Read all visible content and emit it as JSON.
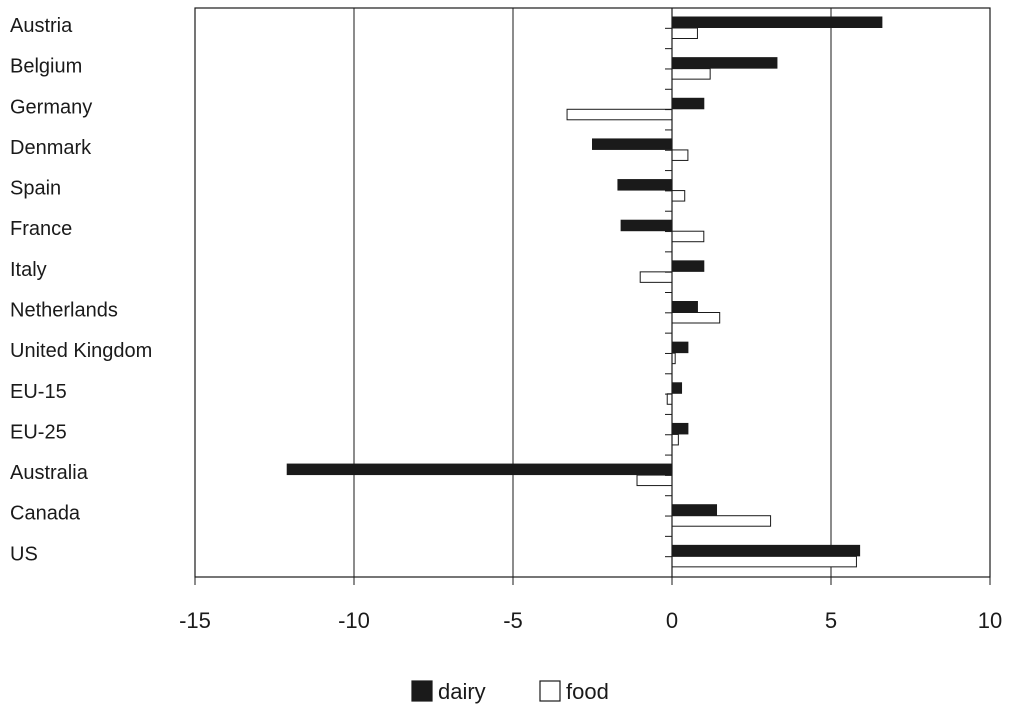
{
  "chart_data": {
    "type": "bar",
    "orientation": "horizontal",
    "categories": [
      "Austria",
      "Belgium",
      "Germany",
      "Denmark",
      "Spain",
      "France",
      "Italy",
      "Netherlands",
      "United Kingdom",
      "EU-15",
      "EU-25",
      "Australia",
      "Canada",
      "US"
    ],
    "series": [
      {
        "name": "dairy",
        "color": "#1a1a1a",
        "values": [
          6.6,
          3.3,
          1.0,
          -2.5,
          -1.7,
          -1.6,
          1.0,
          0.8,
          0.5,
          0.3,
          0.5,
          -12.1,
          1.4,
          5.9
        ]
      },
      {
        "name": "food",
        "color": "#ffffff",
        "values": [
          0.8,
          1.2,
          -3.3,
          0.5,
          0.4,
          1.0,
          -1.0,
          1.5,
          0.1,
          -0.15,
          0.2,
          -1.1,
          3.1,
          5.8
        ]
      }
    ],
    "xlim": [
      -15,
      10
    ],
    "xticks": [
      -15,
      -10,
      -5,
      0,
      5,
      10
    ],
    "xtick_labels": [
      "-15",
      "-10",
      "-5",
      "0",
      "5",
      "10"
    ],
    "title": "",
    "xlabel": "",
    "ylabel": "",
    "grid": "vertical",
    "legend_position": "bottom-center"
  }
}
